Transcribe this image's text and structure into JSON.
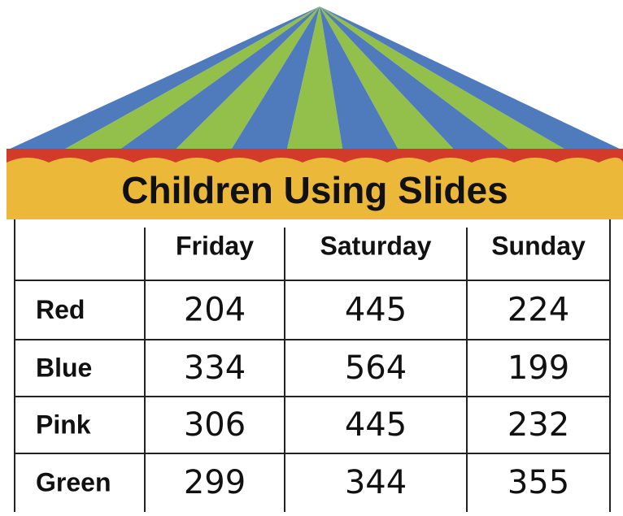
{
  "header": {
    "title": "Children Using Slides"
  },
  "table": {
    "columns": [
      "Friday",
      "Saturday",
      "Sunday"
    ],
    "rows": [
      [
        "Red",
        204,
        445,
        224
      ],
      [
        "Blue",
        334,
        564,
        199
      ],
      [
        "Pink",
        306,
        445,
        232
      ],
      [
        "Green",
        299,
        344,
        355
      ]
    ]
  }
}
